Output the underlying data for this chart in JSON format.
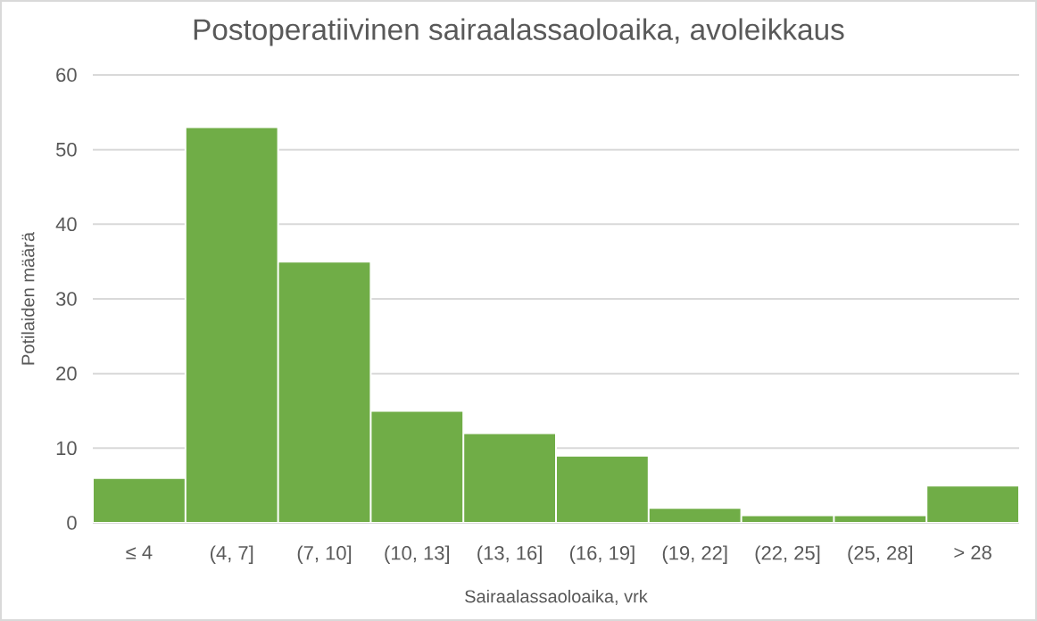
{
  "chart_data": {
    "type": "bar",
    "title": "Postoperatiivinen sairaalassaoloaika, avoleikkaus",
    "xlabel": "Sairaalassaoloaika, vrk",
    "ylabel": "Potilaiden määrä",
    "categories": [
      "≤ 4",
      "(4, 7]",
      "(7, 10]",
      "(10, 13]",
      "(13, 16]",
      "(16, 19]",
      "(19, 22]",
      "(22, 25]",
      "(25, 28]",
      "> 28"
    ],
    "values": [
      6,
      53,
      35,
      15,
      12,
      9,
      2,
      1,
      1,
      5
    ],
    "color": "#70ad47",
    "ylim": [
      0,
      60
    ],
    "yticks": [
      0,
      10,
      20,
      30,
      40,
      50,
      60
    ],
    "grid": "y"
  }
}
